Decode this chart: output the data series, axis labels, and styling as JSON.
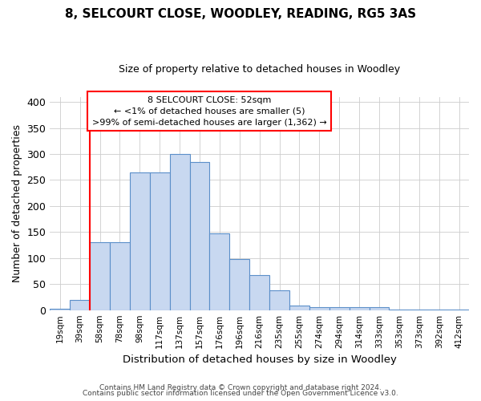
{
  "title": "8, SELCOURT CLOSE, WOODLEY, READING, RG5 3AS",
  "subtitle": "Size of property relative to detached houses in Woodley",
  "xlabel": "Distribution of detached houses by size in Woodley",
  "ylabel": "Number of detached properties",
  "bar_color": "#c8d8f0",
  "bar_edge_color": "#5b8fc9",
  "bg_color": "#ffffff",
  "fig_bg": "#ffffff",
  "grid_color": "#cccccc",
  "categories": [
    "19sqm",
    "39sqm",
    "58sqm",
    "78sqm",
    "98sqm",
    "117sqm",
    "137sqm",
    "157sqm",
    "176sqm",
    "196sqm",
    "216sqm",
    "235sqm",
    "255sqm",
    "274sqm",
    "294sqm",
    "314sqm",
    "333sqm",
    "353sqm",
    "373sqm",
    "392sqm",
    "412sqm"
  ],
  "bar_values": [
    3,
    20,
    130,
    130,
    265,
    265,
    300,
    285,
    148,
    98,
    68,
    38,
    9,
    5,
    5,
    5,
    5,
    1,
    1,
    1,
    1
  ],
  "ylim": [
    0,
    410
  ],
  "yticks": [
    0,
    50,
    100,
    150,
    200,
    250,
    300,
    350,
    400
  ],
  "vline_x_idx": 2,
  "annotation_line1": "8 SELCOURT CLOSE: 52sqm",
  "annotation_line2": "← <1% of detached houses are smaller (5)",
  "annotation_line3": ">99% of semi-detached houses are larger (1,362) →",
  "footer1": "Contains HM Land Registry data © Crown copyright and database right 2024.",
  "footer2": "Contains public sector information licensed under the Open Government Licence v3.0."
}
